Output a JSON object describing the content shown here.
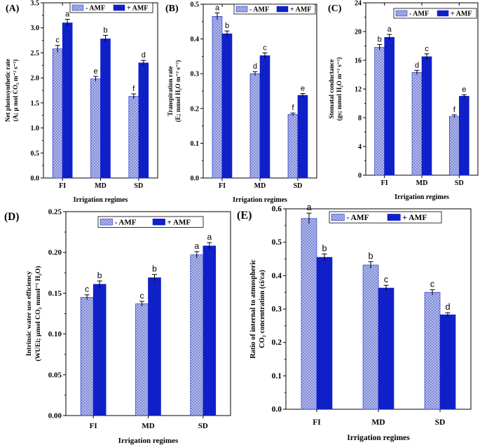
{
  "figure": {
    "legend_labels": [
      "- AMF",
      "+ AMF"
    ],
    "colors": {
      "minus_fill": "#7f8bd8",
      "minus_dot": "#ffffff",
      "plus_fill": "#1020c8",
      "axis": "#000000"
    }
  },
  "chart_data": [
    {
      "panel_label": "(A)",
      "type": "bar",
      "categories": [
        "FI",
        "MD",
        "SD"
      ],
      "xlabel": "Irrigation regimes",
      "ylabel_lines": [
        "Net photosynthetic rate",
        "(A; μ mol CO₂ m⁻² s⁻¹)"
      ],
      "ylim": [
        0,
        3.5
      ],
      "yticks": [
        "0.0",
        "0.5",
        "1.0",
        "1.5",
        "2.0",
        "2.5",
        "3.0",
        "3.5"
      ],
      "series": [
        {
          "name": "- AMF",
          "values": [
            2.58,
            1.98,
            1.63
          ],
          "errors": [
            0.07,
            0.05,
            0.05
          ],
          "letters": [
            "c",
            "e",
            "f"
          ]
        },
        {
          "name": "+ AMF",
          "values": [
            3.1,
            2.78,
            2.3
          ],
          "errors": [
            0.07,
            0.07,
            0.05
          ],
          "letters": [
            "a",
            "b",
            "d"
          ]
        }
      ]
    },
    {
      "panel_label": "(B)",
      "type": "bar",
      "categories": [
        "FI",
        "MD",
        "SD"
      ],
      "xlabel": "Irrigation regimes",
      "ylabel_lines": [
        "Transpiration rate",
        "(E; mmol H₂O m⁻² s⁻¹)"
      ],
      "ylim": [
        0,
        0.5
      ],
      "yticks": [
        "0.0",
        "0.1",
        "0.2",
        "0.3",
        "0.4",
        "0.5"
      ],
      "series": [
        {
          "name": "- AMF",
          "values": [
            0.465,
            0.3,
            0.183
          ],
          "errors": [
            0.01,
            0.006,
            0.004
          ],
          "letters": [
            "a",
            "d",
            "f"
          ]
        },
        {
          "name": "+ AMF",
          "values": [
            0.415,
            0.352,
            0.238
          ],
          "errors": [
            0.008,
            0.008,
            0.005
          ],
          "letters": [
            "b",
            "c",
            "e"
          ]
        }
      ]
    },
    {
      "panel_label": "(C)",
      "type": "bar",
      "categories": [
        "FI",
        "MD",
        "SD"
      ],
      "xlabel": "Irrigation regimes",
      "ylabel_lines": [
        "Stomatal conductance",
        "(gs; mmol H₂O m⁻² s⁻¹)"
      ],
      "ylim": [
        0,
        24
      ],
      "yticks": [
        "0",
        "4",
        "8",
        "12",
        "16",
        "20",
        "24"
      ],
      "series": [
        {
          "name": "- AMF",
          "values": [
            17.8,
            14.3,
            8.2
          ],
          "errors": [
            0.4,
            0.3,
            0.2
          ],
          "letters": [
            "b",
            "d",
            "f"
          ]
        },
        {
          "name": "+ AMF",
          "values": [
            19.2,
            16.5,
            11.0
          ],
          "errors": [
            0.4,
            0.4,
            0.2
          ],
          "letters": [
            "a",
            "c",
            "e"
          ]
        }
      ]
    },
    {
      "panel_label": "(D)",
      "type": "bar",
      "categories": [
        "FI",
        "MD",
        "SD"
      ],
      "xlabel": "Irrigation regimes",
      "ylabel_lines": [
        "Intrinsic water use efficiency",
        "(WUEi; μmol CO₂ mmol⁻¹ H₂O)"
      ],
      "ylim": [
        0,
        0.25
      ],
      "yticks": [
        "0.00",
        "0.05",
        "0.10",
        "0.15",
        "0.20",
        "0.25"
      ],
      "series": [
        {
          "name": "- AMF",
          "values": [
            0.145,
            0.137,
            0.197
          ],
          "errors": [
            0.003,
            0.003,
            0.004
          ],
          "letters": [
            "c",
            "c",
            "a"
          ]
        },
        {
          "name": "+ AMF",
          "values": [
            0.161,
            0.169,
            0.208
          ],
          "errors": [
            0.004,
            0.004,
            0.004
          ],
          "letters": [
            "b",
            "b",
            "a"
          ]
        }
      ]
    },
    {
      "panel_label": "(E)",
      "type": "bar",
      "categories": [
        "FI",
        "MD",
        "SD"
      ],
      "xlabel": "Irrigation regimes",
      "ylabel_lines": [
        "Ratio of internal to atmospheric",
        "CO₂ concentration (ci/ca)"
      ],
      "ylim": [
        0,
        0.6
      ],
      "yticks": [
        "0.0",
        "0.1",
        "0.2",
        "0.3",
        "0.4",
        "0.5",
        "0.6"
      ],
      "series": [
        {
          "name": "- AMF",
          "values": [
            0.571,
            0.432,
            0.35
          ],
          "errors": [
            0.016,
            0.01,
            0.008
          ],
          "letters": [
            "a",
            "b",
            "c"
          ]
        },
        {
          "name": "+ AMF",
          "values": [
            0.455,
            0.363,
            0.283
          ],
          "errors": [
            0.01,
            0.008,
            0.006
          ],
          "letters": [
            "b",
            "c",
            "d"
          ]
        }
      ]
    }
  ]
}
